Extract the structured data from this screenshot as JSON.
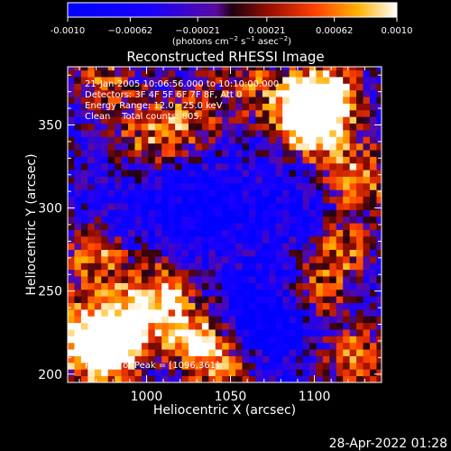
{
  "chart_data": {
    "type": "heatmap",
    "title": "Reconstructed RHESSI Image",
    "xlabel": "Heliocentric X (arcsec)",
    "ylabel": "Heliocentric Y (arcsec)",
    "xlim": [
      953,
      1140
    ],
    "ylim": [
      195,
      385
    ],
    "xticks": [
      1000,
      1050,
      1100
    ],
    "yticks": [
      200,
      250,
      300,
      350
    ],
    "colorbar": {
      "min": -0.001,
      "max": 0.001,
      "ticks": [
        -0.001,
        -0.00062,
        -0.00021,
        0.00021,
        0.00062,
        0.001
      ],
      "tick_labels": [
        "-0.0010",
        "−0.00062",
        "−0.00021",
        "0.00021",
        "0.00062",
        "0.0010"
      ],
      "unit_parts": [
        "(photons cm",
        "−2",
        " s",
        "−1",
        " asec",
        "−2",
        ")"
      ]
    },
    "annotations": [
      "21-Jan-2005 10:06:56.000 to 10:10:00.000",
      "Detectors: 3F 4F 5F 6F 7F 8F, Att 0",
      "Energy Range: 12.0 - 25.0 keV",
      "Clean    Total counts: 805.",
      "Position of Peak = [1096,361]"
    ],
    "grid": false,
    "peak": [
      1096,
      361
    ],
    "pixel_size_arcsec": 4,
    "hot_spots": [
      {
        "x": 1096,
        "y": 361,
        "amp": 1.0
      },
      {
        "x": 1100,
        "y": 350,
        "amp": 0.85
      },
      {
        "x": 1110,
        "y": 370,
        "amp": 0.6
      },
      {
        "x": 975,
        "y": 212,
        "amp": 0.95
      },
      {
        "x": 990,
        "y": 232,
        "amp": 0.8
      },
      {
        "x": 960,
        "y": 225,
        "amp": 0.7
      },
      {
        "x": 1010,
        "y": 250,
        "amp": 0.65
      },
      {
        "x": 1030,
        "y": 222,
        "amp": 0.8
      },
      {
        "x": 1045,
        "y": 205,
        "amp": 0.55
      },
      {
        "x": 970,
        "y": 270,
        "amp": 0.6
      },
      {
        "x": 1000,
        "y": 340,
        "amp": 0.5
      },
      {
        "x": 1025,
        "y": 355,
        "amp": 0.55
      },
      {
        "x": 975,
        "y": 375,
        "amp": 0.5
      },
      {
        "x": 1125,
        "y": 318,
        "amp": 0.7
      },
      {
        "x": 1115,
        "y": 275,
        "amp": 0.55
      },
      {
        "x": 1125,
        "y": 210,
        "amp": 0.6
      },
      {
        "x": 1060,
        "y": 375,
        "amp": 0.45
      },
      {
        "x": 1100,
        "y": 250,
        "amp": 0.5
      }
    ],
    "cold_spots": [
      {
        "x": 1040,
        "y": 300,
        "amp": 1.0
      },
      {
        "x": 1080,
        "y": 238,
        "amp": 0.9
      },
      {
        "x": 1060,
        "y": 230,
        "amp": 0.8
      },
      {
        "x": 1090,
        "y": 300,
        "amp": 0.7
      },
      {
        "x": 1000,
        "y": 300,
        "amp": 0.6
      }
    ]
  },
  "timestamp": "28-Apr-2022 01:28",
  "colors": {
    "background": "#000000",
    "foreground": "#ffffff"
  }
}
